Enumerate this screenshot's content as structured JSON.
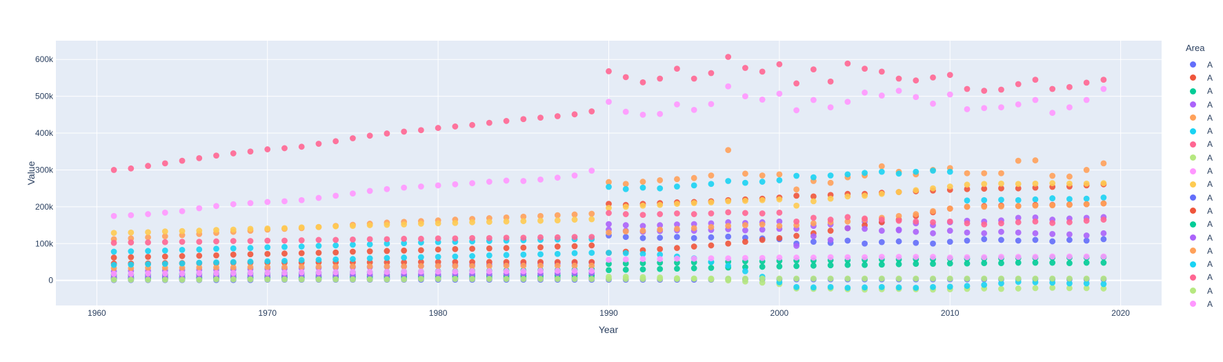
{
  "chart_data": {
    "type": "scatter",
    "title": "",
    "xlabel": "Year",
    "ylabel": "Value",
    "legend_title": "Area",
    "legend_position": "right",
    "grid": true,
    "plot_bgcolor": "#E5ECF6",
    "grid_color": "#FFFFFF",
    "axis_text_color": "#2a3f5f",
    "values_unit": "thousands (axis shows k)",
    "xlim": [
      1957.6,
      2022.4
    ],
    "ylim_k": [
      -68,
      651
    ],
    "x_ticks": {
      "values": [
        1960,
        1970,
        1980,
        1990,
        2000,
        2010,
        2020
      ],
      "labels": [
        "1960",
        "1970",
        "1980",
        "1990",
        "2000",
        "2010",
        "2020"
      ]
    },
    "y_ticks": {
      "values_k": [
        0,
        100,
        200,
        300,
        400,
        500,
        600
      ],
      "labels": [
        "0",
        "100k",
        "200k",
        "300k",
        "400k",
        "500k",
        "600k"
      ]
    },
    "x": [
      1961,
      1962,
      1963,
      1964,
      1965,
      1966,
      1967,
      1968,
      1969,
      1970,
      1971,
      1972,
      1973,
      1974,
      1975,
      1976,
      1977,
      1978,
      1979,
      1980,
      1981,
      1982,
      1983,
      1984,
      1985,
      1986,
      1987,
      1988,
      1989,
      1990,
      1991,
      1992,
      1993,
      1994,
      1995,
      1996,
      1997,
      1998,
      1999,
      2000,
      2001,
      2002,
      2003,
      2004,
      2005,
      2006,
      2007,
      2008,
      2009,
      2010,
      2011,
      2012,
      2013,
      2014,
      2015,
      2016,
      2017,
      2018,
      2019
    ],
    "series": [
      {
        "name": "A",
        "color": "#636EFA",
        "values_k": [
          1,
          1,
          1,
          1,
          1,
          1,
          1,
          1,
          1,
          2,
          2,
          2,
          2,
          2,
          2,
          2,
          2,
          2,
          2,
          2,
          2,
          2,
          2,
          2,
          2,
          2,
          2,
          2,
          2,
          2,
          2,
          2,
          2,
          2,
          2,
          2,
          3,
          3,
          3,
          3,
          3,
          3,
          3,
          3,
          3,
          3,
          3,
          3,
          3,
          3,
          3,
          3,
          3,
          3,
          3,
          3,
          3,
          3,
          3
        ]
      },
      {
        "name": "A",
        "color": "#EF553B",
        "values_k": [
          62,
          63,
          64,
          65,
          66,
          67,
          68,
          70,
          71,
          72,
          73,
          74,
          75,
          76,
          78,
          79,
          80,
          81,
          82,
          84,
          85,
          86,
          87,
          88,
          89,
          90,
          92,
          93,
          95,
          208,
          205,
          208,
          210,
          212,
          213,
          215,
          218,
          220,
          222,
          225,
          230,
          228,
          232,
          235,
          235,
          238,
          240,
          242,
          244,
          246,
          248,
          249,
          250,
          250,
          252,
          254,
          255,
          258,
          261
        ]
      },
      {
        "name": "A",
        "color": "#00CC96",
        "values_k": [
          15,
          15,
          16,
          16,
          17,
          17,
          18,
          18,
          19,
          19,
          20,
          20,
          21,
          21,
          22,
          22,
          23,
          24,
          24,
          25,
          25,
          26,
          26,
          27,
          27,
          28,
          28,
          29,
          30,
          45,
          46,
          47,
          48,
          48,
          49,
          50,
          51,
          52,
          52,
          53,
          54,
          54,
          55,
          55,
          56,
          57,
          57,
          58,
          58,
          59,
          59,
          60,
          60,
          61,
          61,
          62,
          62,
          62,
          63
        ]
      },
      {
        "name": "A",
        "color": "#AB63FA",
        "values_k": [
          25,
          26,
          26,
          27,
          28,
          29,
          29,
          30,
          31,
          32,
          32,
          33,
          34,
          35,
          36,
          36,
          37,
          38,
          39,
          40,
          41,
          42,
          43,
          44,
          45,
          46,
          46,
          47,
          48,
          153,
          150,
          148,
          150,
          152,
          153,
          155,
          158,
          156,
          158,
          160,
          140,
          148,
          152,
          142,
          160,
          158,
          136,
          155,
          150,
          158,
          162,
          160,
          163,
          170,
          171,
          165,
          168,
          170,
          172
        ]
      },
      {
        "name": "A",
        "color": "#FFA15A",
        "values_k": [
          112,
          114,
          117,
          120,
          123,
          126,
          129,
          132,
          135,
          138,
          140,
          142,
          145,
          148,
          151,
          154,
          157,
          159,
          161,
          163,
          165,
          167,
          169,
          171,
          173,
          175,
          177,
          179,
          181,
          267,
          262,
          268,
          272,
          275,
          278,
          285,
          354,
          290,
          285,
          288,
          247,
          270,
          265,
          280,
          285,
          310,
          295,
          288,
          300,
          305,
          291,
          291,
          291,
          325,
          326,
          284,
          282,
          300,
          318
        ]
      },
      {
        "name": "A",
        "color": "#19D3F3",
        "values_k": [
          78,
          79,
          80,
          81,
          83,
          84,
          86,
          87,
          88,
          90,
          91,
          92,
          94,
          95,
          97,
          98,
          100,
          101,
          103,
          104,
          105,
          106,
          107,
          108,
          109,
          110,
          111,
          112,
          112,
          254,
          248,
          252,
          250,
          255,
          258,
          262,
          270,
          265,
          268,
          272,
          284,
          280,
          285,
          288,
          292,
          295,
          290,
          295,
          298,
          295,
          217,
          218,
          219,
          218,
          220,
          223,
          221,
          222,
          225
        ]
      },
      {
        "name": "A",
        "color": "#FF6692",
        "values_k": [
          300,
          304,
          311,
          318,
          325,
          332,
          339,
          345,
          350,
          356,
          359,
          363,
          371,
          378,
          386,
          393,
          399,
          404,
          408,
          414,
          418,
          422,
          428,
          433,
          438,
          442,
          446,
          451,
          459,
          568,
          552,
          538,
          548,
          575,
          548,
          563,
          607,
          577,
          567,
          587,
          535,
          573,
          540,
          589,
          575,
          567,
          548,
          543,
          551,
          558,
          520,
          515,
          518,
          533,
          545,
          520,
          525,
          537,
          545
        ]
      },
      {
        "name": "A",
        "color": "#B6E880",
        "values_k": [
          5,
          5,
          5,
          5,
          6,
          6,
          6,
          6,
          6,
          6,
          7,
          7,
          7,
          7,
          7,
          7,
          8,
          8,
          8,
          8,
          8,
          8,
          8,
          9,
          9,
          9,
          9,
          9,
          9,
          10,
          10,
          9,
          8,
          6,
          5,
          3,
          0,
          -3,
          -6,
          -10,
          -22,
          -23,
          -22,
          -24,
          -25,
          -24,
          -23,
          -24,
          -25,
          -24,
          -23,
          -22,
          -23,
          -22,
          -21,
          -20,
          -21,
          -21,
          -22
        ]
      },
      {
        "name": "A",
        "color": "#FF97FF",
        "values_k": [
          175,
          177,
          180,
          184,
          188,
          196,
          202,
          207,
          210,
          213,
          215,
          218,
          224,
          230,
          236,
          243,
          248,
          252,
          255,
          258,
          261,
          264,
          268,
          271,
          270,
          274,
          279,
          285,
          298,
          485,
          458,
          450,
          452,
          478,
          463,
          479,
          527,
          500,
          491,
          507,
          462,
          490,
          470,
          485,
          510,
          502,
          515,
          498,
          480,
          505,
          465,
          468,
          470,
          478,
          490,
          455,
          470,
          490,
          520
        ]
      },
      {
        "name": "A",
        "color": "#FECB52",
        "values_k": [
          129,
          130,
          131,
          133,
          134,
          135,
          137,
          138,
          140,
          141,
          142,
          144,
          145,
          147,
          148,
          150,
          151,
          152,
          154,
          155,
          156,
          158,
          159,
          160,
          161,
          162,
          163,
          165,
          166,
          197,
          200,
          203,
          205,
          208,
          210,
          212,
          215,
          216,
          218,
          220,
          203,
          215,
          222,
          228,
          230,
          235,
          240,
          245,
          250,
          255,
          260,
          262,
          263,
          262,
          263,
          264,
          263,
          263,
          264
        ]
      },
      {
        "name": "A",
        "color": "#636EFA",
        "values_k": [
          4,
          4,
          4,
          4,
          4,
          5,
          5,
          5,
          5,
          5,
          5,
          5,
          5,
          5,
          5,
          5,
          6,
          6,
          6,
          6,
          6,
          6,
          6,
          6,
          6,
          6,
          6,
          6,
          6,
          122,
          118,
          115,
          116,
          118,
          115,
          117,
          119,
          116,
          114,
          112,
          100,
          105,
          102,
          108,
          100,
          104,
          106,
          102,
          100,
          105,
          108,
          112,
          110,
          108,
          110,
          106,
          110,
          108,
          112
        ]
      },
      {
        "name": "A",
        "color": "#EF553B",
        "values_k": [
          46,
          46,
          46,
          47,
          47,
          47,
          47,
          48,
          48,
          48,
          48,
          48,
          49,
          49,
          49,
          49,
          49,
          49,
          50,
          50,
          50,
          50,
          50,
          50,
          50,
          50,
          50,
          50,
          50,
          75,
          78,
          82,
          85,
          88,
          92,
          95,
          100,
          105,
          110,
          115,
          121,
          128,
          135,
          142,
          150,
          158,
          165,
          175,
          185,
          195,
          200,
          202,
          203,
          202,
          205,
          205,
          206,
          207,
          209
        ]
      },
      {
        "name": "A",
        "color": "#00CC96",
        "values_k": [
          7,
          7,
          7,
          8,
          8,
          8,
          9,
          9,
          9,
          10,
          10,
          10,
          10,
          11,
          11,
          11,
          11,
          12,
          12,
          12,
          12,
          13,
          13,
          13,
          13,
          13,
          14,
          14,
          14,
          28,
          29,
          30,
          31,
          32,
          33,
          34,
          35,
          36,
          37,
          38,
          39,
          40,
          41,
          42,
          42,
          43,
          44,
          45,
          45,
          46,
          46,
          47,
          47,
          48,
          48,
          48,
          47,
          48,
          48
        ]
      },
      {
        "name": "A",
        "color": "#AB63FA",
        "values_k": [
          10,
          10,
          11,
          11,
          11,
          12,
          12,
          12,
          13,
          13,
          13,
          14,
          14,
          14,
          15,
          15,
          15,
          16,
          16,
          16,
          17,
          17,
          17,
          18,
          18,
          18,
          19,
          19,
          20,
          138,
          135,
          132,
          134,
          136,
          135,
          137,
          139,
          136,
          138,
          140,
          94,
          120,
          110,
          142,
          140,
          135,
          138,
          132,
          128,
          135,
          130,
          128,
          132,
          130,
          128,
          126,
          125,
          122,
          128
        ]
      },
      {
        "name": "A",
        "color": "#FFA15A",
        "values_k": [
          33,
          33,
          34,
          34,
          34,
          35,
          35,
          35,
          36,
          36,
          36,
          37,
          37,
          37,
          38,
          38,
          38,
          38,
          39,
          39,
          39,
          39,
          39,
          40,
          40,
          40,
          40,
          40,
          40,
          130,
          133,
          135,
          138,
          140,
          142,
          145,
          148,
          150,
          152,
          148,
          150,
          155,
          158,
          160,
          165,
          170,
          175,
          180,
          188,
          195,
          200,
          200,
          201,
          202,
          203,
          204,
          205,
          207,
          209
        ]
      },
      {
        "name": "A",
        "color": "#19D3F3",
        "values_k": [
          42,
          43,
          44,
          45,
          46,
          48,
          49,
          50,
          51,
          52,
          53,
          55,
          56,
          57,
          58,
          60,
          61,
          62,
          63,
          64,
          65,
          66,
          68,
          69,
          70,
          71,
          72,
          74,
          75,
          75,
          74,
          72,
          70,
          65,
          60,
          50,
          40,
          25,
          10,
          -5,
          -18,
          -19,
          -18,
          -20,
          -19,
          -18,
          -19,
          -20,
          -18,
          -17,
          -15,
          -12,
          -8,
          -4,
          -5,
          -6,
          -8,
          -8,
          -10
        ]
      },
      {
        "name": "A",
        "color": "#FF6692",
        "values_k": [
          102,
          103,
          103,
          104,
          105,
          105,
          106,
          107,
          107,
          108,
          108,
          109,
          110,
          110,
          111,
          112,
          112,
          113,
          113,
          114,
          114,
          115,
          115,
          116,
          116,
          117,
          117,
          118,
          118,
          183,
          180,
          178,
          180,
          182,
          180,
          182,
          185,
          183,
          182,
          184,
          160,
          170,
          165,
          172,
          168,
          165,
          162,
          160,
          158,
          160,
          155,
          152,
          155,
          158,
          160,
          156,
          158,
          162,
          165
        ]
      },
      {
        "name": "A",
        "color": "#B6E880",
        "values_k": [
          2,
          2,
          2,
          2,
          2,
          2,
          3,
          3,
          3,
          3,
          3,
          3,
          3,
          3,
          3,
          3,
          3,
          3,
          4,
          4,
          4,
          4,
          4,
          4,
          4,
          4,
          4,
          4,
          4,
          4,
          4,
          4,
          4,
          4,
          5,
          5,
          5,
          5,
          5,
          5,
          5,
          5,
          5,
          5,
          5,
          5,
          5,
          5,
          5,
          5,
          5,
          5,
          5,
          5,
          5,
          5,
          5,
          5,
          5
        ]
      },
      {
        "name": "A",
        "color": "#FF97FF",
        "values_k": [
          18,
          18,
          19,
          19,
          19,
          20,
          20,
          20,
          21,
          21,
          21,
          22,
          22,
          22,
          23,
          23,
          23,
          24,
          24,
          24,
          24,
          25,
          25,
          25,
          25,
          26,
          26,
          26,
          26,
          56,
          57,
          58,
          58,
          59,
          59,
          60,
          60,
          61,
          61,
          62,
          62,
          62,
          63,
          63,
          63,
          64,
          64,
          64,
          64,
          62,
          63,
          63,
          64,
          64,
          64,
          65,
          65,
          65,
          65
        ]
      }
    ]
  }
}
